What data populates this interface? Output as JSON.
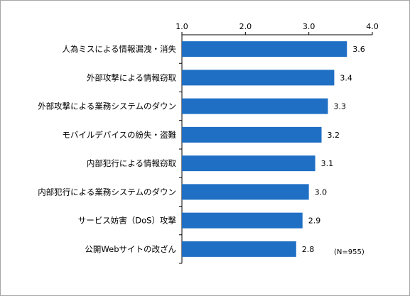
{
  "chart_data": {
    "type": "bar",
    "orientation": "horizontal",
    "categories": [
      "人為ミスによる情報漏洩・消失",
      "外部攻撃による情報窃取",
      "外部攻撃による業務システムのダウン",
      "モバイルデバイスの紛失・盗難",
      "内部犯行による情報窃取",
      "内部犯行による業務システムのダウン",
      "サービス妨害（DoS）攻撃",
      "公開Webサイトの改ざん"
    ],
    "values": [
      3.6,
      3.4,
      3.3,
      3.2,
      3.1,
      3.0,
      2.9,
      2.8
    ],
    "value_labels": [
      "3.6",
      "3.4",
      "3.3",
      "3.2",
      "3.1",
      "3.0",
      "2.9",
      "2.8"
    ],
    "xlim": [
      1.0,
      4.0
    ],
    "xticks": [
      1.0,
      2.0,
      3.0,
      4.0
    ],
    "xtick_labels": [
      "1.0",
      "2.0",
      "3.0",
      "4.0"
    ],
    "axis_position": "top",
    "grid": false,
    "bar_color": "#1f6fc5",
    "annotation": "(N=955)"
  }
}
